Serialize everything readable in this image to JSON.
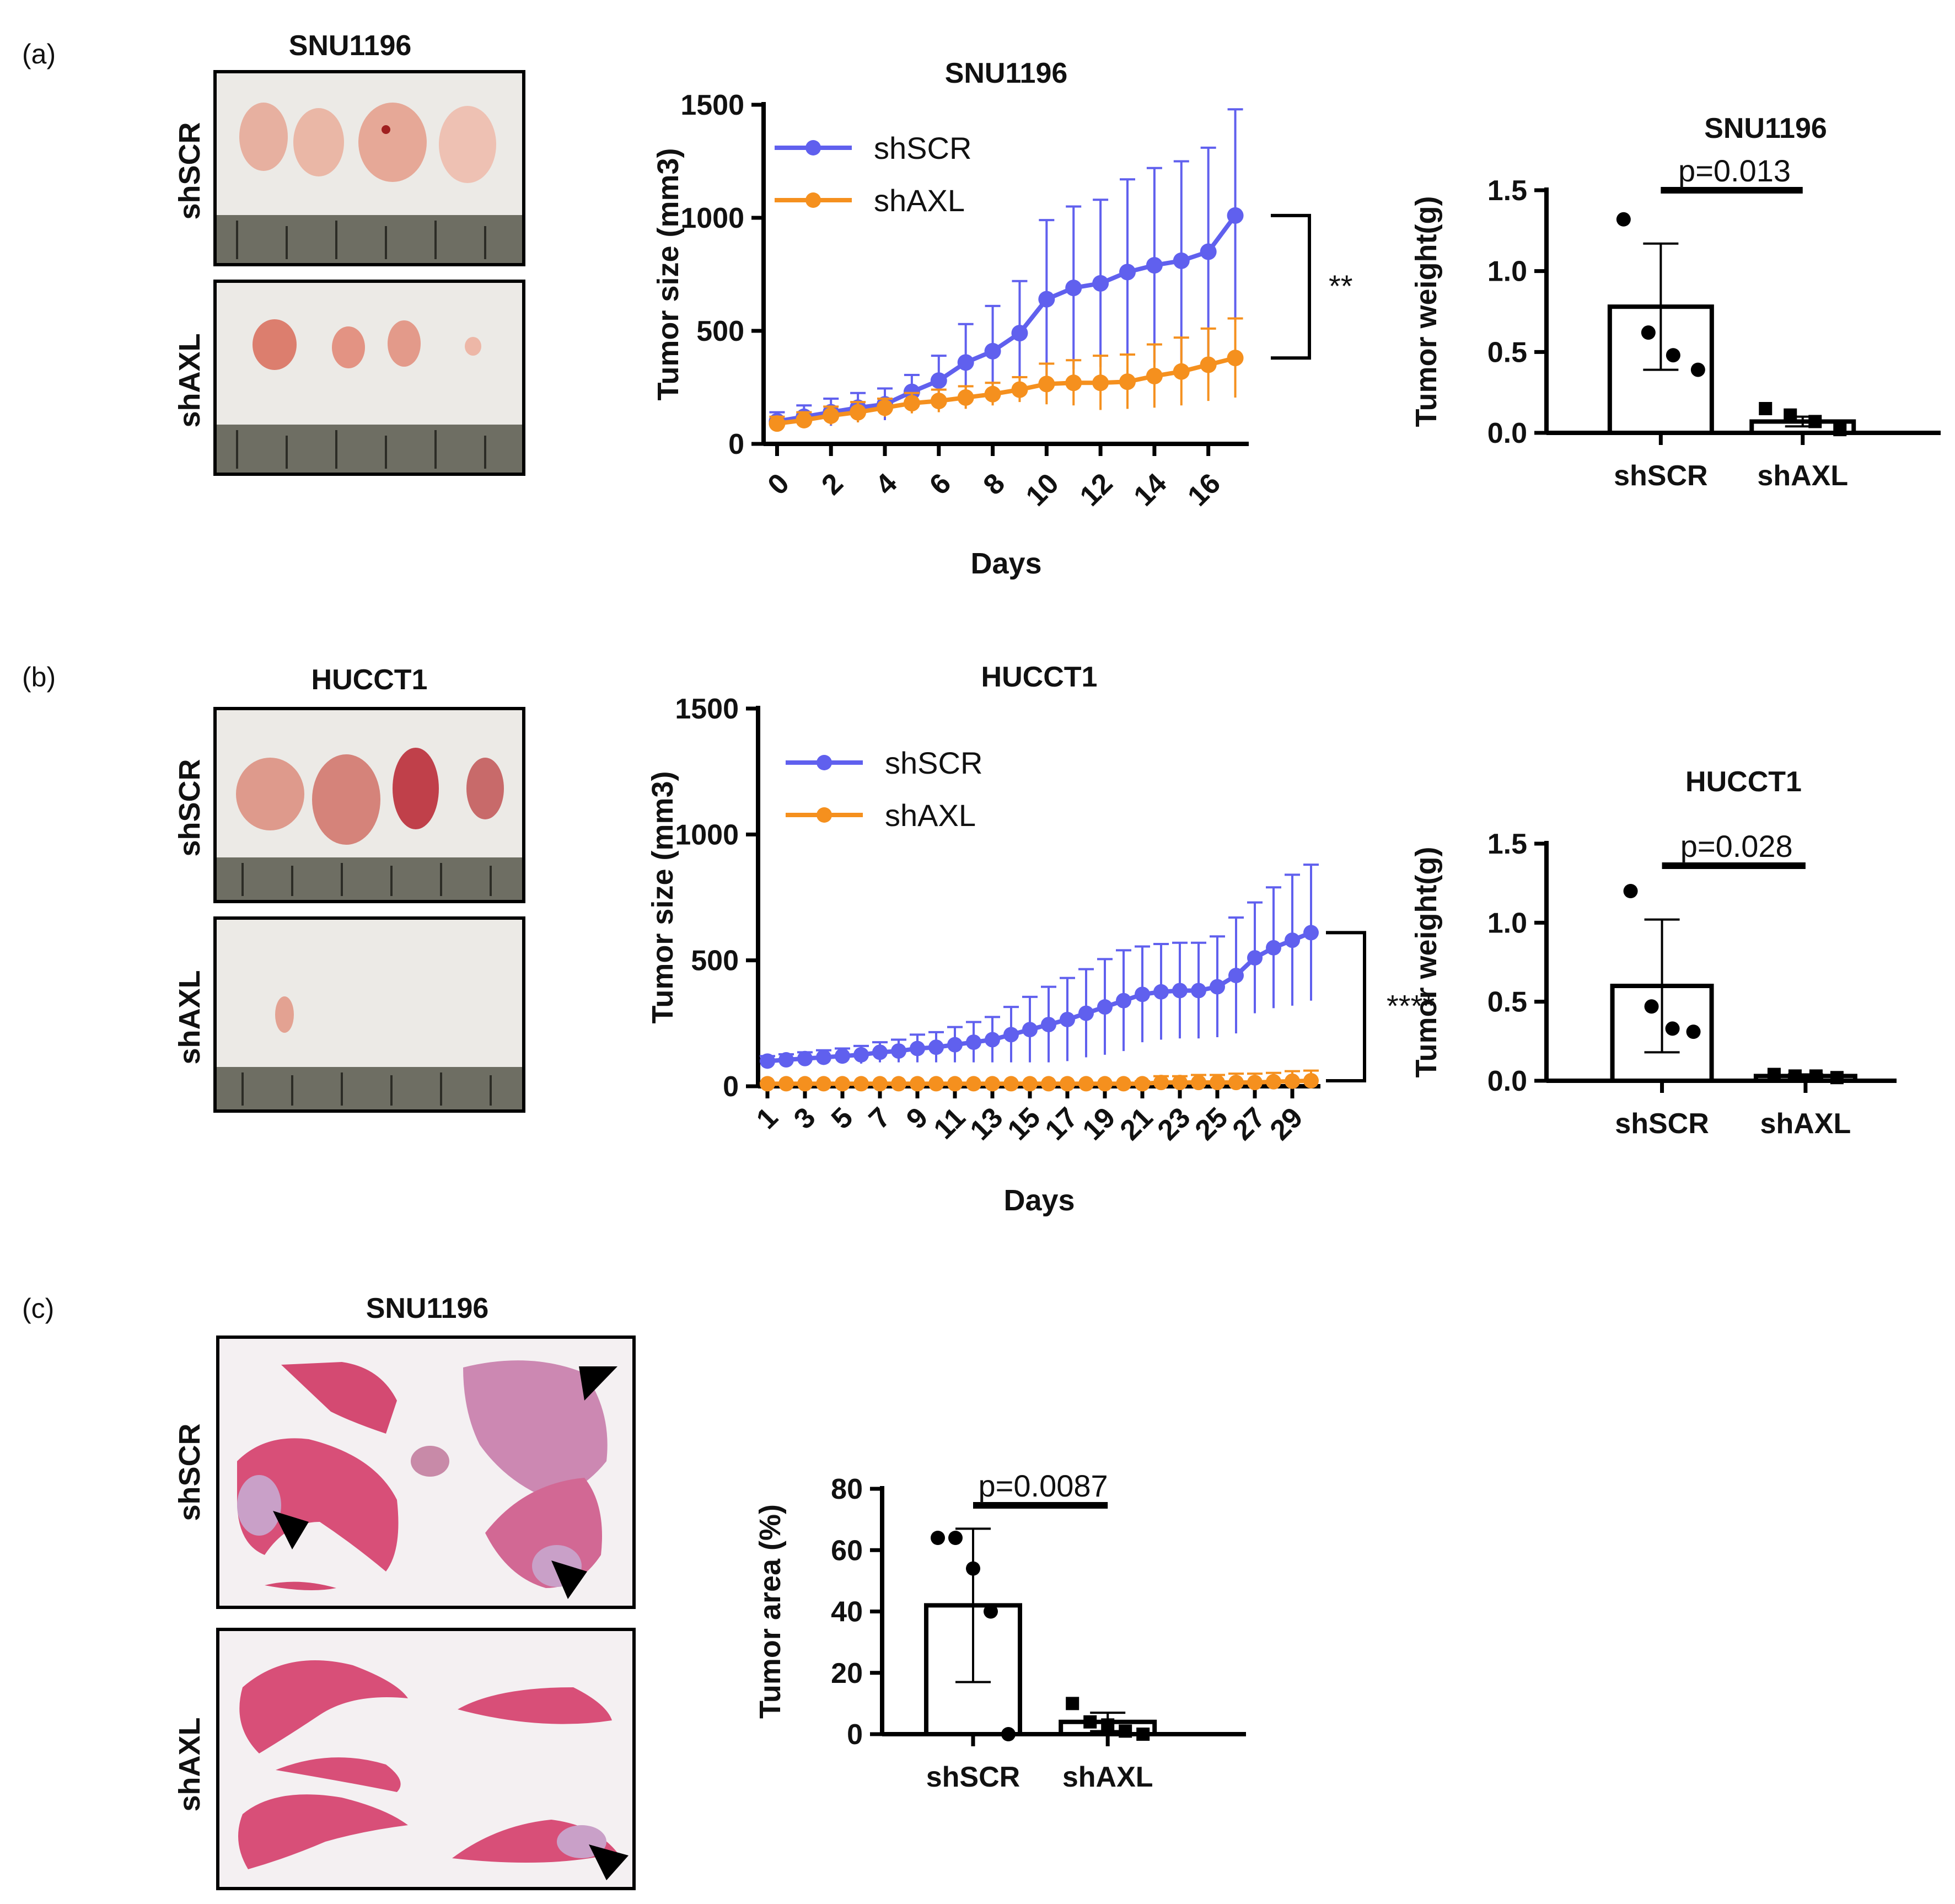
{
  "colors": {
    "shSCR": "#6060ee",
    "shAXL": "#f5901e",
    "bar": "#000000",
    "liver": "#d8507a",
    "tumor": "#c9a0c8"
  },
  "panel_a": {
    "label": "(a)",
    "photo_title": "SNU1196",
    "photo_rows": [
      "shSCR",
      "shAXL"
    ],
    "icons": [
      "tumor-photo-shSCR",
      "tumor-photo-shAXL"
    ]
  },
  "panel_b": {
    "label": "(b)",
    "photo_title": "HUCCT1",
    "photo_rows": [
      "shSCR",
      "shAXL"
    ],
    "icons": [
      "tumor-photo-shSCR",
      "tumor-photo-shAXL"
    ]
  },
  "panel_c": {
    "label": "(c)",
    "photo_title": "SNU1196",
    "photo_rows": [
      "shSCR",
      "shAXL"
    ],
    "icons": [
      "liver-histology-shSCR",
      "liver-histology-shAXL",
      "arrowhead-icon"
    ]
  },
  "chart_data": [
    {
      "id": "a_growth",
      "type": "line",
      "title": "SNU1196",
      "xlabel": "Days",
      "ylabel": "Tumor size (mm3)",
      "xlim": [
        -0.5,
        17.5
      ],
      "ylim": [
        0,
        1500
      ],
      "yticks": [
        0,
        500,
        1000,
        1500
      ],
      "xticks": [
        0,
        2,
        4,
        6,
        8,
        10,
        12,
        14,
        16
      ],
      "significance": "**",
      "series": [
        {
          "name": "shSCR",
          "color": "#6060ee",
          "x": [
            0,
            1,
            2,
            3,
            4,
            5,
            6,
            7,
            8,
            9,
            10,
            11,
            12,
            13,
            14,
            15,
            16,
            17
          ],
          "values": [
            100,
            120,
            140,
            160,
            175,
            230,
            280,
            360,
            410,
            490,
            640,
            690,
            710,
            760,
            790,
            810,
            850,
            1010
          ],
          "err": [
            40,
            50,
            60,
            65,
            70,
            75,
            110,
            170,
            200,
            230,
            350,
            360,
            370,
            410,
            430,
            440,
            460,
            470
          ]
        },
        {
          "name": "shAXL",
          "color": "#f5901e",
          "x": [
            0,
            1,
            2,
            3,
            4,
            5,
            6,
            7,
            8,
            9,
            10,
            11,
            12,
            13,
            14,
            15,
            16,
            17
          ],
          "values": [
            90,
            105,
            125,
            140,
            160,
            180,
            190,
            205,
            220,
            240,
            265,
            270,
            270,
            275,
            300,
            320,
            350,
            380
          ],
          "err": [
            30,
            35,
            40,
            45,
            40,
            45,
            50,
            50,
            50,
            55,
            90,
            100,
            120,
            120,
            140,
            150,
            160,
            175
          ]
        }
      ]
    },
    {
      "id": "a_weight",
      "type": "bar",
      "title": "SNU1196",
      "ylabel": "Tumor weight(g)",
      "categories": [
        "shSCR",
        "shAXL"
      ],
      "values": [
        0.78,
        0.07
      ],
      "err": [
        0.39,
        0.03
      ],
      "points": [
        [
          1.32,
          0.62,
          0.48,
          0.39
        ],
        [
          0.15,
          0.11,
          0.07,
          0.02
        ]
      ],
      "ylim": [
        0,
        1.5
      ],
      "yticks": [
        0.0,
        0.5,
        1.0,
        1.5
      ],
      "pvalue": "p=0.013"
    },
    {
      "id": "b_growth",
      "type": "line",
      "title": "HUCCT1",
      "xlabel": "Days",
      "ylabel": "Tumor size (mm3)",
      "xlim": [
        0.5,
        30.5
      ],
      "ylim": [
        0,
        1500
      ],
      "yticks": [
        0,
        500,
        1000,
        1500
      ],
      "xticks": [
        1,
        3,
        5,
        7,
        9,
        11,
        13,
        15,
        17,
        19,
        21,
        23,
        25,
        27,
        29
      ],
      "significance": "****",
      "series": [
        {
          "name": "shSCR",
          "color": "#6060ee",
          "x": [
            1,
            2,
            3,
            4,
            5,
            6,
            7,
            8,
            9,
            10,
            11,
            12,
            13,
            14,
            15,
            16,
            17,
            18,
            19,
            20,
            21,
            22,
            23,
            24,
            25,
            26,
            27,
            28,
            29,
            30
          ],
          "values": [
            100,
            105,
            110,
            115,
            120,
            125,
            135,
            140,
            150,
            155,
            165,
            175,
            185,
            205,
            225,
            245,
            265,
            290,
            315,
            340,
            365,
            375,
            380,
            380,
            395,
            440,
            510,
            550,
            580,
            610
          ],
          "err": [
            20,
            22,
            25,
            28,
            30,
            35,
            40,
            45,
            55,
            60,
            70,
            80,
            90,
            110,
            130,
            150,
            165,
            175,
            190,
            200,
            190,
            190,
            190,
            190,
            200,
            230,
            220,
            240,
            260,
            270
          ]
        },
        {
          "name": "shAXL",
          "color": "#f5901e",
          "x": [
            1,
            2,
            3,
            4,
            5,
            6,
            7,
            8,
            9,
            10,
            11,
            12,
            13,
            14,
            15,
            16,
            17,
            18,
            19,
            20,
            21,
            22,
            23,
            24,
            25,
            26,
            27,
            28,
            29,
            30
          ],
          "values": [
            10,
            10,
            10,
            10,
            10,
            10,
            10,
            10,
            10,
            10,
            10,
            10,
            10,
            10,
            10,
            10,
            10,
            10,
            10,
            10,
            10,
            15,
            15,
            15,
            15,
            15,
            15,
            18,
            20,
            22
          ],
          "err": [
            2,
            2,
            2,
            2,
            2,
            2,
            2,
            2,
            2,
            2,
            2,
            2,
            2,
            2,
            2,
            2,
            2,
            2,
            2,
            2,
            10,
            25,
            25,
            30,
            30,
            35,
            35,
            35,
            40,
            40
          ]
        }
      ]
    },
    {
      "id": "b_weight",
      "type": "bar",
      "title": "HUCCT1",
      "ylabel": "Tumor weight(g)",
      "categories": [
        "shSCR",
        "shAXL"
      ],
      "values": [
        0.6,
        0.03
      ],
      "err": [
        0.42,
        0.01
      ],
      "points": [
        [
          1.2,
          0.47,
          0.33,
          0.31
        ],
        [
          0.04,
          0.03,
          0.03,
          0.02
        ]
      ],
      "ylim": [
        0,
        1.5
      ],
      "yticks": [
        0.0,
        0.5,
        1.0,
        1.5
      ],
      "pvalue": "p=0.028"
    },
    {
      "id": "c_area",
      "type": "bar",
      "title": "",
      "ylabel": "Tumor area (%)",
      "categories": [
        "shSCR",
        "shAXL"
      ],
      "values": [
        42,
        4
      ],
      "err": [
        25,
        3
      ],
      "points": [
        [
          64,
          64,
          54,
          40,
          0
        ],
        [
          10,
          4,
          3,
          1,
          0
        ]
      ],
      "ylim": [
        0,
        80
      ],
      "yticks": [
        0,
        20,
        40,
        60,
        80
      ],
      "pvalue": "p=0.0087"
    }
  ]
}
